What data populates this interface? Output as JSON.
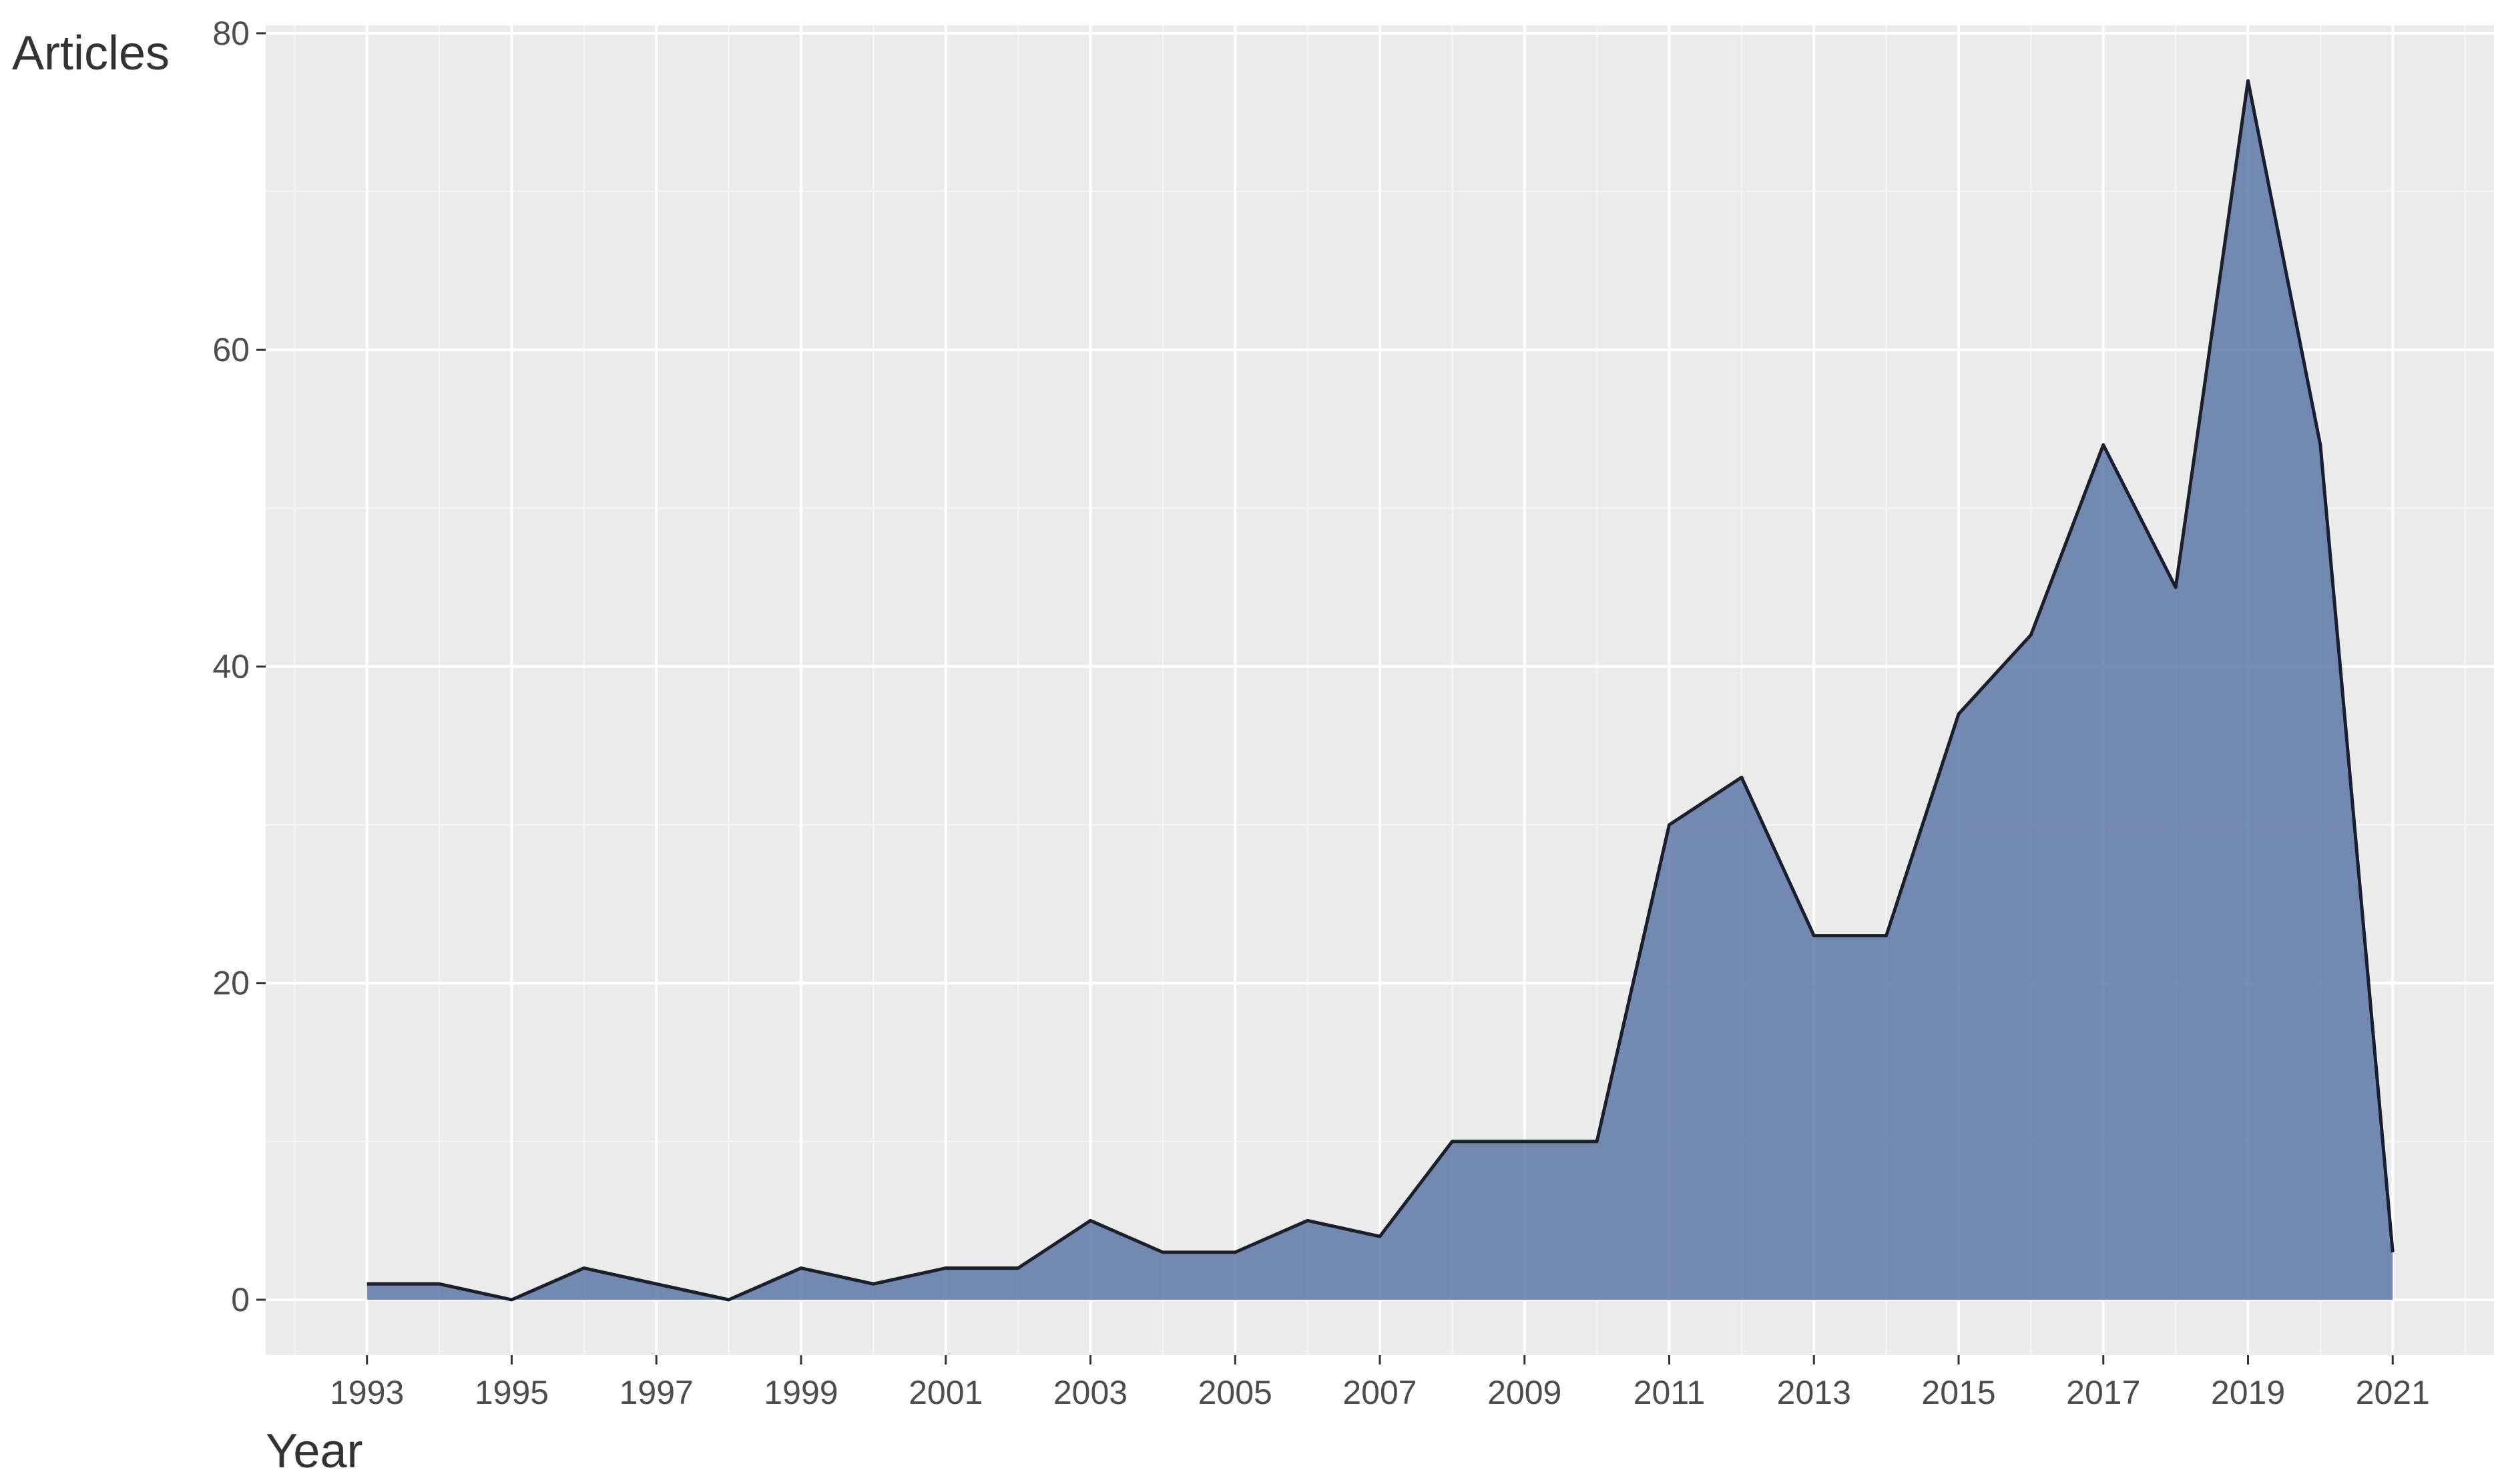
{
  "chart_data": {
    "type": "area",
    "title": "",
    "xlabel": "Year",
    "ylabel": "Articles",
    "x": [
      1993,
      1994,
      1995,
      1996,
      1997,
      1998,
      1999,
      2000,
      2001,
      2002,
      2003,
      2004,
      2005,
      2006,
      2007,
      2008,
      2009,
      2010,
      2011,
      2012,
      2013,
      2014,
      2015,
      2016,
      2017,
      2018,
      2019,
      2020,
      2021
    ],
    "series": [
      {
        "values": [
          1,
          1,
          0,
          2,
          1,
          0,
          2,
          1,
          2,
          2,
          5,
          3,
          3,
          5,
          4,
          10,
          10,
          10,
          30,
          33,
          23,
          23,
          37,
          42,
          54,
          45,
          77,
          54,
          3
        ]
      }
    ],
    "xlim": [
      1991.6,
      2022.4
    ],
    "ylim": [
      -3.5,
      80.5
    ],
    "x_ticks": [
      "1993",
      "1995",
      "1997",
      "1999",
      "2001",
      "2003",
      "2005",
      "2007",
      "2009",
      "2011",
      "2013",
      "2015",
      "2017",
      "2019",
      "2021"
    ],
    "y_ticks": [
      "0",
      "20",
      "40",
      "60",
      "80"
    ],
    "grid": true,
    "legend": "none",
    "colors": {
      "panel_background": "#ebebeb",
      "grid_major": "#ffffff",
      "grid_minor": "#f5f5f5",
      "area_fill": "#5f78a8",
      "area_outline": "#1a1f2e",
      "tick_text": "#4d4d4d",
      "title_text": "#333333"
    }
  }
}
